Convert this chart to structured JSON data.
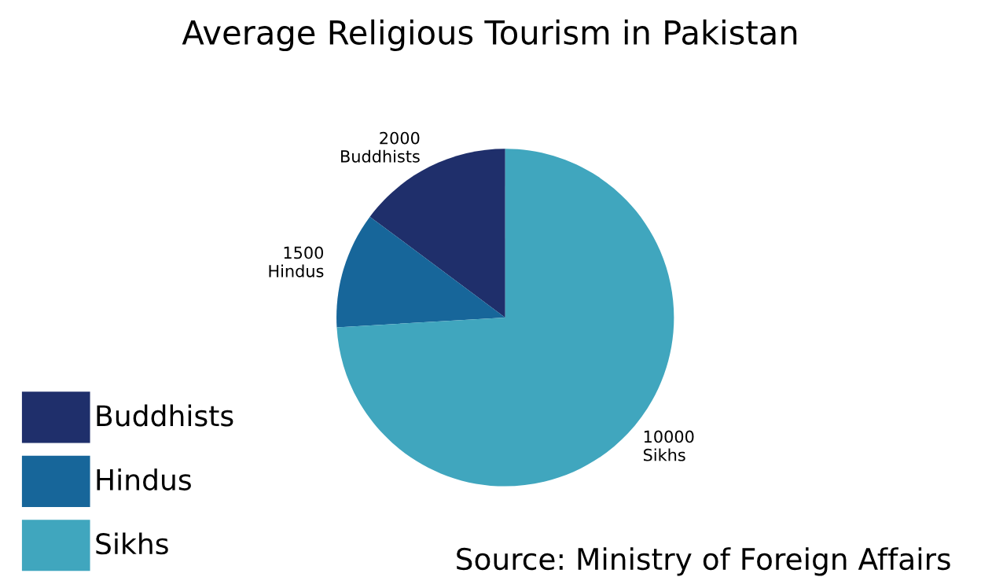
{
  "chart_data": {
    "type": "pie",
    "title": "Average Religious Tourism in Pakistan",
    "categories": [
      "Buddhists",
      "Hindus",
      "Sikhs"
    ],
    "values": [
      2000,
      1500,
      10000
    ],
    "colors": [
      "#1f2f6b",
      "#17669a",
      "#40a6be"
    ],
    "data_labels": true,
    "legend": "bottom left",
    "annotations": [
      "Source: Ministry of Foreign Affairs"
    ]
  }
}
